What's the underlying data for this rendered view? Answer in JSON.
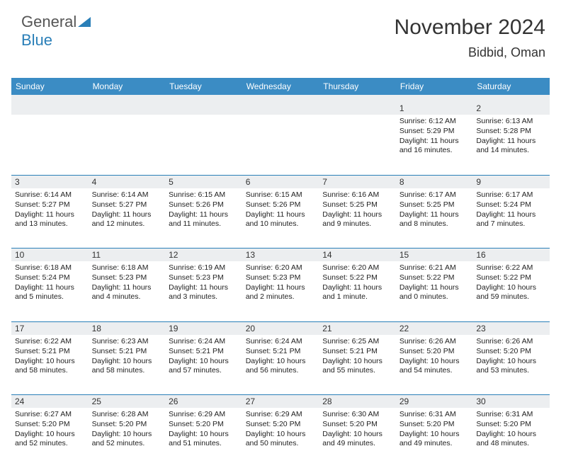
{
  "brand": {
    "part1": "General",
    "part2": "Blue"
  },
  "title": "November 2024",
  "location": "Bidbid, Oman",
  "colors": {
    "header_bg": "#3b8cc4",
    "header_text": "#ffffff",
    "daynum_bg": "#eceef0",
    "rule": "#2a7fb8",
    "text": "#222222",
    "brand_gray": "#555555",
    "brand_blue": "#2a7fb8",
    "background": "#ffffff"
  },
  "day_names": [
    "Sunday",
    "Monday",
    "Tuesday",
    "Wednesday",
    "Thursday",
    "Friday",
    "Saturday"
  ],
  "weeks": [
    [
      null,
      null,
      null,
      null,
      null,
      {
        "n": "1",
        "sr": "6:12 AM",
        "ss": "5:29 PM",
        "dl": "11 hours and 16 minutes."
      },
      {
        "n": "2",
        "sr": "6:13 AM",
        "ss": "5:28 PM",
        "dl": "11 hours and 14 minutes."
      }
    ],
    [
      {
        "n": "3",
        "sr": "6:14 AM",
        "ss": "5:27 PM",
        "dl": "11 hours and 13 minutes."
      },
      {
        "n": "4",
        "sr": "6:14 AM",
        "ss": "5:27 PM",
        "dl": "11 hours and 12 minutes."
      },
      {
        "n": "5",
        "sr": "6:15 AM",
        "ss": "5:26 PM",
        "dl": "11 hours and 11 minutes."
      },
      {
        "n": "6",
        "sr": "6:15 AM",
        "ss": "5:26 PM",
        "dl": "11 hours and 10 minutes."
      },
      {
        "n": "7",
        "sr": "6:16 AM",
        "ss": "5:25 PM",
        "dl": "11 hours and 9 minutes."
      },
      {
        "n": "8",
        "sr": "6:17 AM",
        "ss": "5:25 PM",
        "dl": "11 hours and 8 minutes."
      },
      {
        "n": "9",
        "sr": "6:17 AM",
        "ss": "5:24 PM",
        "dl": "11 hours and 7 minutes."
      }
    ],
    [
      {
        "n": "10",
        "sr": "6:18 AM",
        "ss": "5:24 PM",
        "dl": "11 hours and 5 minutes."
      },
      {
        "n": "11",
        "sr": "6:18 AM",
        "ss": "5:23 PM",
        "dl": "11 hours and 4 minutes."
      },
      {
        "n": "12",
        "sr": "6:19 AM",
        "ss": "5:23 PM",
        "dl": "11 hours and 3 minutes."
      },
      {
        "n": "13",
        "sr": "6:20 AM",
        "ss": "5:23 PM",
        "dl": "11 hours and 2 minutes."
      },
      {
        "n": "14",
        "sr": "6:20 AM",
        "ss": "5:22 PM",
        "dl": "11 hours and 1 minute."
      },
      {
        "n": "15",
        "sr": "6:21 AM",
        "ss": "5:22 PM",
        "dl": "11 hours and 0 minutes."
      },
      {
        "n": "16",
        "sr": "6:22 AM",
        "ss": "5:22 PM",
        "dl": "10 hours and 59 minutes."
      }
    ],
    [
      {
        "n": "17",
        "sr": "6:22 AM",
        "ss": "5:21 PM",
        "dl": "10 hours and 58 minutes."
      },
      {
        "n": "18",
        "sr": "6:23 AM",
        "ss": "5:21 PM",
        "dl": "10 hours and 58 minutes."
      },
      {
        "n": "19",
        "sr": "6:24 AM",
        "ss": "5:21 PM",
        "dl": "10 hours and 57 minutes."
      },
      {
        "n": "20",
        "sr": "6:24 AM",
        "ss": "5:21 PM",
        "dl": "10 hours and 56 minutes."
      },
      {
        "n": "21",
        "sr": "6:25 AM",
        "ss": "5:21 PM",
        "dl": "10 hours and 55 minutes."
      },
      {
        "n": "22",
        "sr": "6:26 AM",
        "ss": "5:20 PM",
        "dl": "10 hours and 54 minutes."
      },
      {
        "n": "23",
        "sr": "6:26 AM",
        "ss": "5:20 PM",
        "dl": "10 hours and 53 minutes."
      }
    ],
    [
      {
        "n": "24",
        "sr": "6:27 AM",
        "ss": "5:20 PM",
        "dl": "10 hours and 52 minutes."
      },
      {
        "n": "25",
        "sr": "6:28 AM",
        "ss": "5:20 PM",
        "dl": "10 hours and 52 minutes."
      },
      {
        "n": "26",
        "sr": "6:29 AM",
        "ss": "5:20 PM",
        "dl": "10 hours and 51 minutes."
      },
      {
        "n": "27",
        "sr": "6:29 AM",
        "ss": "5:20 PM",
        "dl": "10 hours and 50 minutes."
      },
      {
        "n": "28",
        "sr": "6:30 AM",
        "ss": "5:20 PM",
        "dl": "10 hours and 49 minutes."
      },
      {
        "n": "29",
        "sr": "6:31 AM",
        "ss": "5:20 PM",
        "dl": "10 hours and 49 minutes."
      },
      {
        "n": "30",
        "sr": "6:31 AM",
        "ss": "5:20 PM",
        "dl": "10 hours and 48 minutes."
      }
    ]
  ],
  "labels": {
    "sunrise": "Sunrise: ",
    "sunset": "Sunset: ",
    "daylight": "Daylight: "
  }
}
